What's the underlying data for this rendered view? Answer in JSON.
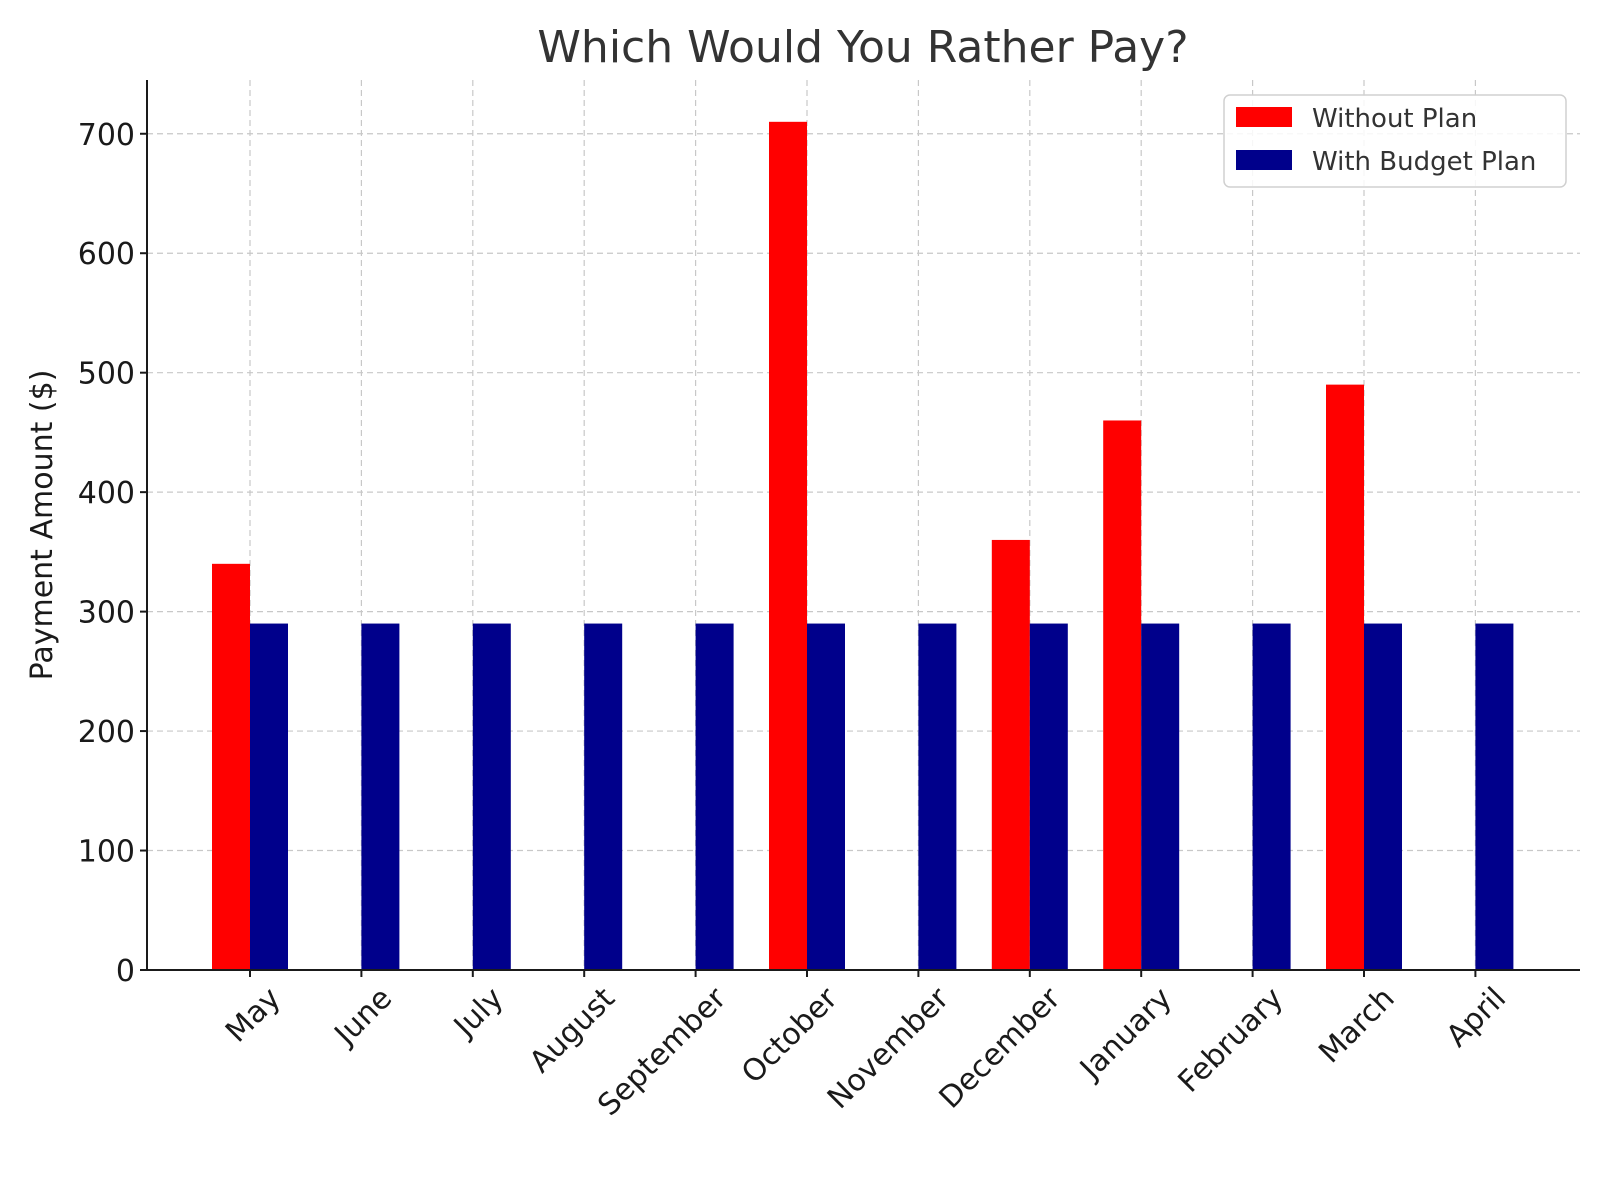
{
  "chart_data": {
    "type": "bar",
    "title": "Which Would You Rather Pay?",
    "xlabel": "",
    "ylabel": "Payment Amount ($)",
    "ylim": [
      0,
      745
    ],
    "yticks": [
      0,
      100,
      200,
      300,
      400,
      500,
      600,
      700
    ],
    "grid": true,
    "legend_position": "top-right",
    "categories": [
      "May",
      "June",
      "July",
      "August",
      "September",
      "October",
      "November",
      "December",
      "January",
      "February",
      "March",
      "April"
    ],
    "series": [
      {
        "name": "Without Plan",
        "color": "#ff0000",
        "values": [
          340,
          0,
          0,
          0,
          0,
          710,
          0,
          360,
          460,
          0,
          490,
          0
        ]
      },
      {
        "name": "With Budget Plan",
        "color": "#00008b",
        "values": [
          290,
          290,
          290,
          290,
          290,
          290,
          290,
          290,
          290,
          290,
          290,
          290
        ]
      }
    ]
  }
}
